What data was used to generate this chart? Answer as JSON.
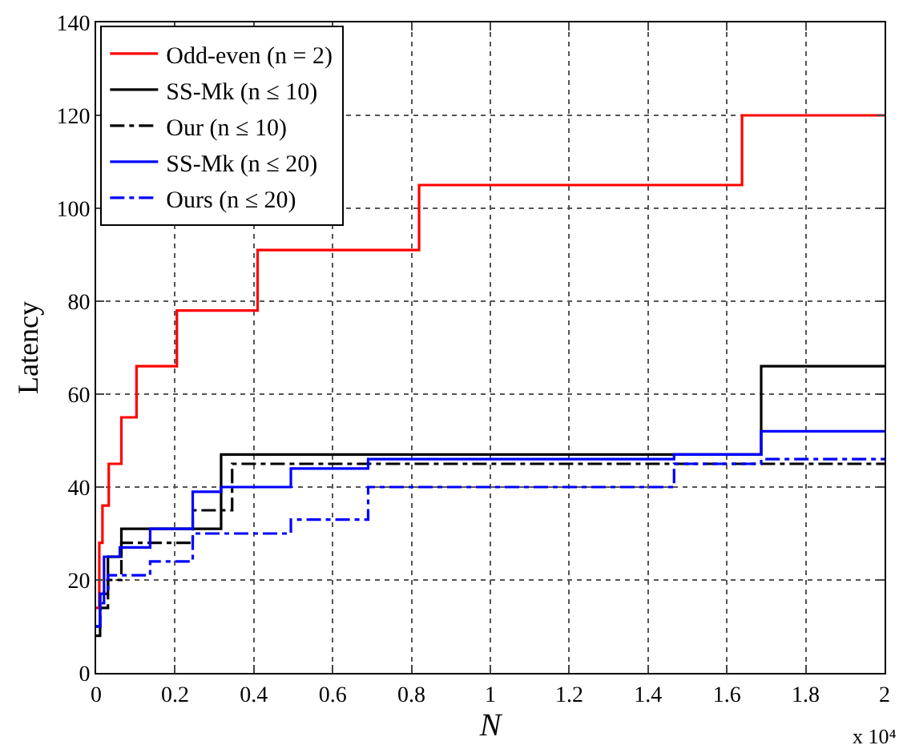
{
  "chart_data": {
    "type": "step",
    "xlabel": "N",
    "ylabel": "Latency",
    "annotations": [
      "x 10⁴"
    ],
    "xlim": [
      0,
      2
    ],
    "xticks": [
      0,
      0.2,
      0.4,
      0.6,
      0.8,
      1,
      1.2,
      1.4,
      1.6,
      1.8,
      2
    ],
    "ylim": [
      0,
      140
    ],
    "yticks": [
      0,
      20,
      40,
      60,
      80,
      100,
      120,
      140
    ],
    "grid": true,
    "legend": "top left",
    "marker": "none",
    "series": [
      {
        "name": "Odd-even (n = 2)",
        "color": "#ff0000",
        "line_style": "solid",
        "x": [
          0,
          0.008,
          0.016,
          0.032,
          0.064,
          0.1024,
          0.2048,
          0.4096,
          0.8192,
          1.6384,
          2
        ],
        "values": [
          14,
          28,
          36,
          45,
          55,
          66,
          78,
          91,
          105,
          120,
          120
        ]
      },
      {
        "name": "SS-Mk (n ≤ 10)",
        "color": "#000000",
        "line_style": "solid",
        "x": [
          0,
          0.01,
          0.03,
          0.064,
          0.317,
          1.687,
          2
        ],
        "values": [
          10,
          17,
          25,
          31,
          47,
          66,
          66
        ]
      },
      {
        "name": "Our (n ≤ 10)",
        "color": "#000000",
        "line_style": "dashed",
        "x": [
          0,
          0.01,
          0.03,
          0.064,
          0.245,
          0.345,
          2
        ],
        "values": [
          8,
          14,
          20,
          28,
          35,
          45,
          45
        ]
      },
      {
        "name": "SS-Mk (n ≤ 20)",
        "color": "#0000ff",
        "line_style": "solid",
        "x": [
          0,
          0.01,
          0.02,
          0.06,
          0.137,
          0.245,
          0.317,
          0.494,
          0.69,
          1.466,
          1.687,
          2
        ],
        "values": [
          10,
          17,
          25,
          27,
          31,
          39,
          40,
          44,
          46,
          47,
          52,
          52
        ]
      },
      {
        "name": "Ours (n ≤ 20)",
        "color": "#0000ff",
        "line_style": "dashed",
        "x": [
          0,
          0.01,
          0.02,
          0.03,
          0.137,
          0.245,
          0.494,
          0.69,
          1.466,
          1.687,
          2
        ],
        "values": [
          10,
          15,
          18,
          21,
          24,
          30,
          33,
          40,
          45,
          46,
          46
        ]
      }
    ]
  }
}
